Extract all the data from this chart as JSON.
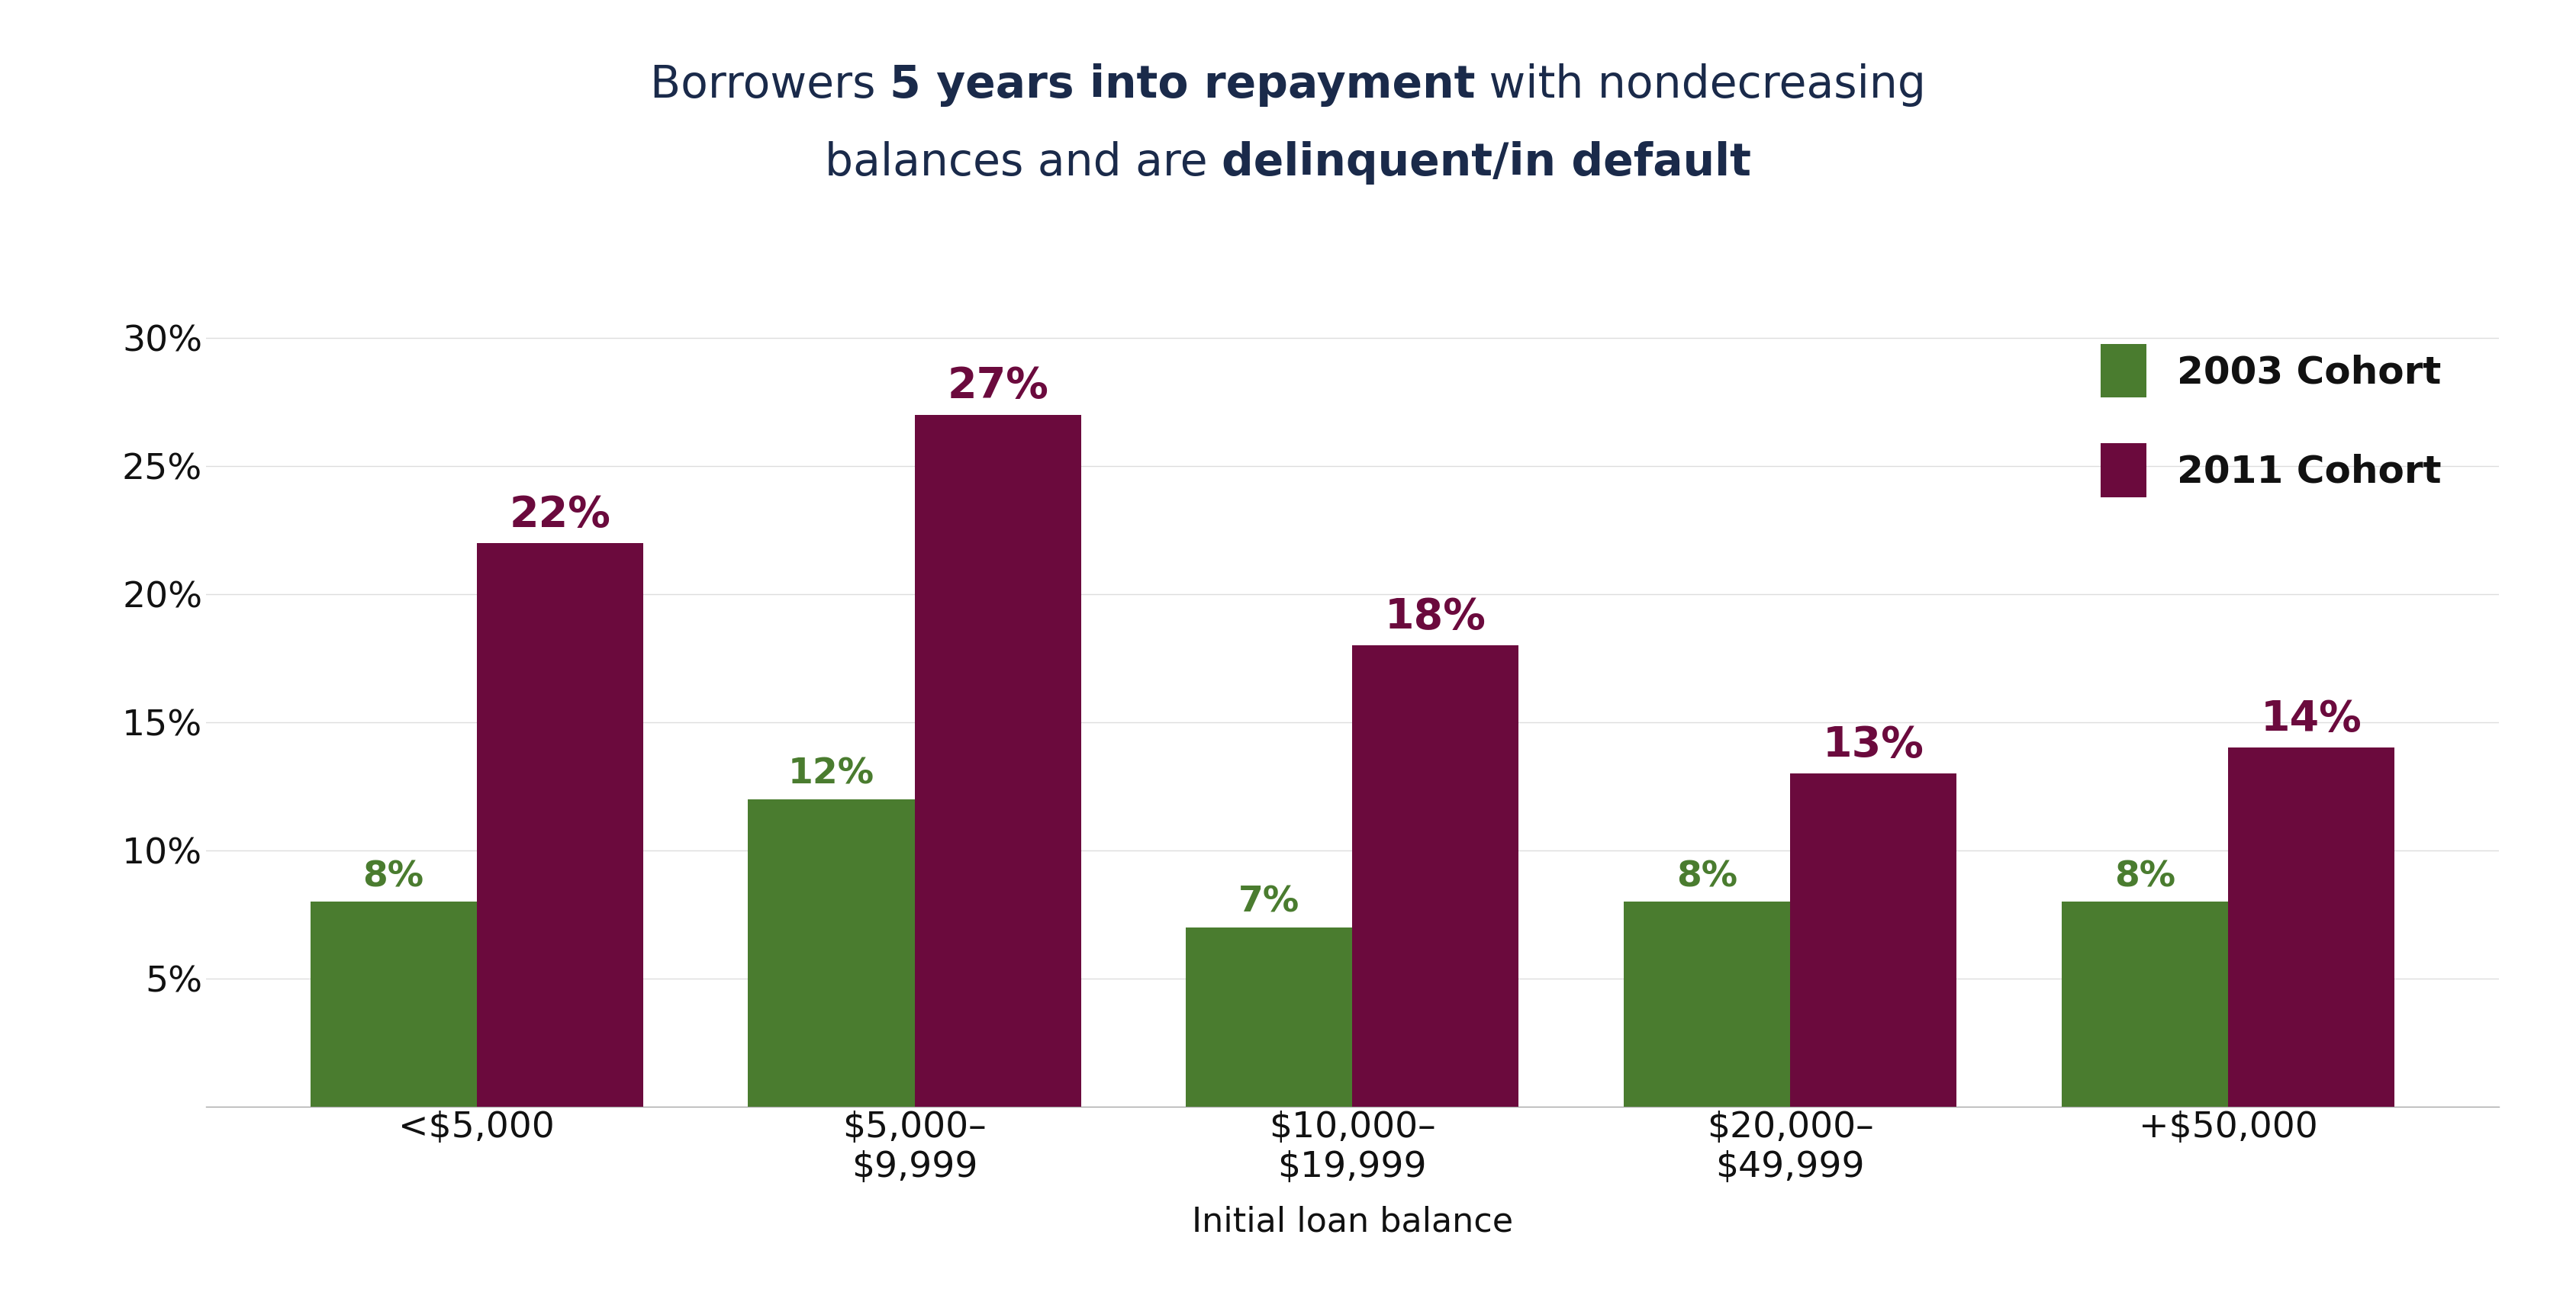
{
  "categories": [
    "<$5,000",
    "$5,000–\n$9,999",
    "$10,000–\n$19,999",
    "$20,000–\n$49,999",
    "+$50,000"
  ],
  "values_2003": [
    8,
    12,
    7,
    8,
    8
  ],
  "values_2011": [
    22,
    27,
    18,
    13,
    14
  ],
  "labels_2003": [
    "8%",
    "12%",
    "7%",
    "8%",
    "8%"
  ],
  "labels_2011": [
    "22%",
    "27%",
    "18%",
    "13%",
    "14%"
  ],
  "color_2003": "#4a7c2f",
  "color_2011": "#6b0a3d",
  "legend_2003": "2003 Cohort",
  "legend_2011": "2011 Cohort",
  "xlabel": "Initial loan balance",
  "ylim_max": 32,
  "yticks": [
    0,
    5,
    10,
    15,
    20,
    25,
    30
  ],
  "ytick_labels": [
    "",
    "5%",
    "10%",
    "15%",
    "20%",
    "25%",
    "30%"
  ],
  "background_color": "#ffffff",
  "bar_width": 0.38,
  "title_fontsize": 42,
  "tick_fontsize": 34,
  "legend_fontsize": 36,
  "xlabel_fontsize": 32,
  "value_label_fontsize_2003": 34,
  "value_label_fontsize_2011": 40,
  "title_color": "#1a2a4a",
  "axis_color": "#111111",
  "grid_color": "#dddddd",
  "spine_color": "#aaaaaa"
}
